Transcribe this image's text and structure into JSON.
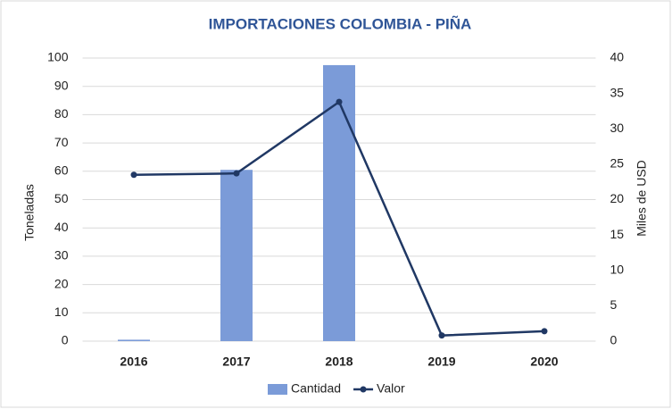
{
  "chart_data": {
    "type": "bar",
    "title": "IMPORTACIONES COLOMBIA - PIÑA",
    "categories": [
      "2016",
      "2017",
      "2018",
      "2019",
      "2020"
    ],
    "series": [
      {
        "name": "Cantidad",
        "color": "#7b9bd8",
        "values": [
          0.5,
          60.5,
          97.5,
          0,
          0
        ]
      },
      {
        "name": "Valor",
        "type": "line",
        "axis": "y2",
        "color": "#203864",
        "values": [
          23.5,
          23.7,
          33.8,
          0.8,
          1.4
        ]
      }
    ],
    "ylabel": "Toneladas",
    "y2label": "Miles de USD",
    "ylim": [
      0,
      100
    ],
    "yticks": [
      0,
      10,
      20,
      30,
      40,
      50,
      60,
      70,
      80,
      90,
      100
    ],
    "y2lim": [
      0,
      40
    ],
    "y2ticks": [
      0,
      5,
      10,
      15,
      20,
      25,
      30,
      35,
      40
    ],
    "grid": true,
    "legend": "bottom"
  }
}
